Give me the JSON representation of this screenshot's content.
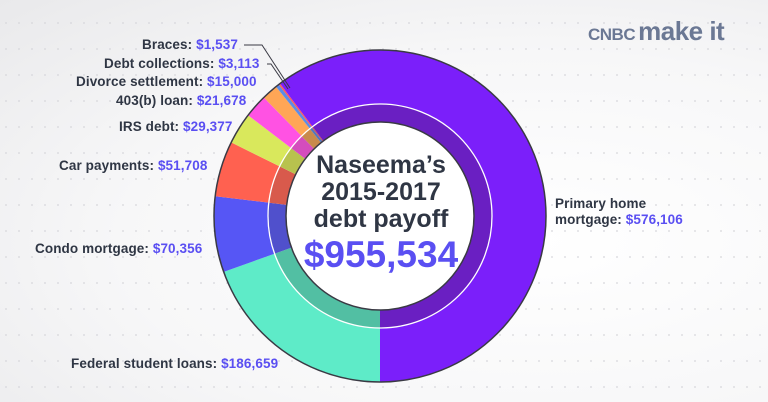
{
  "logo": {
    "cnbc": "CNBC",
    "make_it": "make it"
  },
  "center": {
    "line1": "Naseema’s",
    "line2": "2015-2017",
    "line3": "debt payoff",
    "total": "$955,534"
  },
  "colors": {
    "label_text": "#2f3644",
    "value_text": "#5a4ff2",
    "outline": "#3a3a44"
  },
  "chart_data": {
    "type": "pie",
    "subtype": "donut",
    "title": "Naseema’s 2015-2017 debt payoff",
    "total_label": "$955,534",
    "total": 955534,
    "start_angle_deg": 180,
    "direction": "clockwise",
    "categories": [
      "Federal student loans",
      "Condo mortgage",
      "Car payments",
      "IRS debt",
      "403(b) loan",
      "Divorce settlement",
      "Debt collections",
      "Braces",
      "Primary home mortgage"
    ],
    "values": [
      186659,
      70356,
      51708,
      29377,
      21678,
      15000,
      3113,
      1537,
      576106
    ],
    "value_labels": [
      "$186,659",
      "$70,356",
      "$51,708",
      "$29,377",
      "$21,678",
      "$15,000",
      "$3,113",
      "$1,537",
      "$576,106"
    ],
    "colors": [
      "#5eebc8",
      "#5656f5",
      "#ff6150",
      "#d9e85c",
      "#ff52e3",
      "#ffa656",
      "#5b8ce8",
      "#ff5a5a",
      "#7b1ffa"
    ],
    "inner_colors": [
      "#52bfa3",
      "#5050cc",
      "#d85a4c",
      "#b8c24e",
      "#d44dbd",
      "#c98a4c",
      "#5276c0",
      "#d45050",
      "#6a1fc2"
    ],
    "legend": "direct labels"
  },
  "labels": [
    {
      "name": "Braces",
      "text": "Braces: ",
      "value": "$1,537"
    },
    {
      "name": "Debt collections",
      "text": "Debt collections: ",
      "value": "$3,113"
    },
    {
      "name": "Divorce settlement",
      "text": "Divorce settlement: ",
      "value": "$15,000"
    },
    {
      "name": "403(b) loan",
      "text": "403(b) loan: ",
      "value": "$21,678"
    },
    {
      "name": "IRS debt",
      "text": "IRS debt: ",
      "value": "$29,377"
    },
    {
      "name": "Car payments",
      "text": "Car payments: ",
      "value": "$51,708"
    },
    {
      "name": "Condo mortgage",
      "text": "Condo mortgage: ",
      "value": "$70,356"
    },
    {
      "name": "Federal student loans",
      "text": "Federal student loans: ",
      "value": "$186,659"
    },
    {
      "name": "Primary home mortgage",
      "text_line1": "Primary home",
      "text_line2": "mortgage: ",
      "value": "$576,106"
    }
  ]
}
